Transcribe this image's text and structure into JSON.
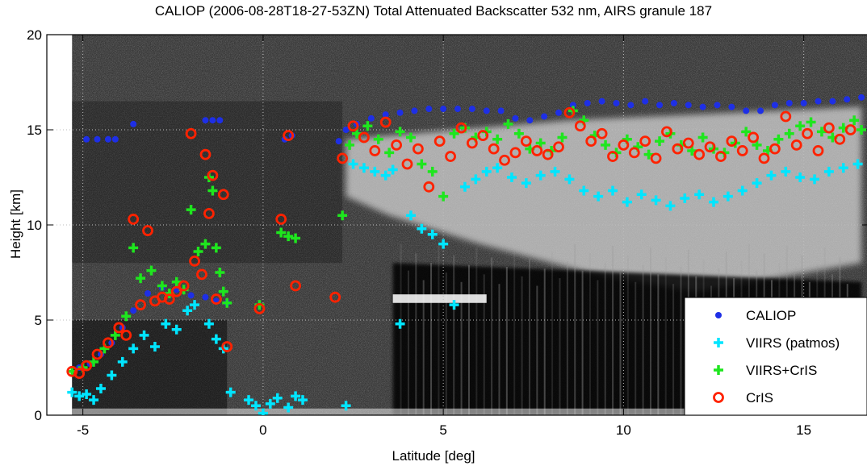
{
  "chart_data": {
    "type": "scatter",
    "title": "CALIOP (2006-08-28T18-27-53ZN) Total Attenuated Backscatter 532 nm, AIRS granule 187",
    "xlabel": "Latitude [deg]",
    "ylabel": "Height [km]",
    "xlim": [
      -6.0,
      16.8
    ],
    "ylim": [
      0,
      20
    ],
    "xticks": [
      -5,
      0,
      5,
      10,
      15
    ],
    "yticks": [
      0,
      5,
      10,
      15,
      20
    ],
    "xtick_labels": [
      "-5",
      "0",
      "5",
      "10",
      "15"
    ],
    "ytick_labels": [
      "0",
      "5",
      "10",
      "15",
      "20"
    ],
    "grid": true,
    "legend_position": "bottom-right",
    "background": "lidar total attenuated backscatter curtain (grayscale)",
    "series": [
      {
        "name": "CALIOP",
        "marker": "dot",
        "color": "#1e2fe6",
        "x": [
          -5.1,
          -4.8,
          -4.5,
          -4.2,
          -3.9,
          -3.6,
          -3.2,
          -2.8,
          -2.4,
          -2.0,
          -1.6,
          -1.3,
          -1.0,
          -4.9,
          -4.6,
          -4.3,
          -4.1,
          -3.6,
          -1.6,
          -1.4,
          -1.2,
          0.6,
          0.8,
          2.1,
          2.3,
          2.6,
          3.0,
          3.4,
          3.8,
          4.2,
          4.6,
          5.0,
          5.4,
          5.8,
          6.2,
          6.6,
          7.0,
          7.4,
          7.8,
          8.2,
          8.6,
          9.0,
          9.4,
          9.8,
          10.2,
          10.6,
          11.0,
          11.4,
          11.8,
          12.2,
          12.6,
          13.0,
          13.4,
          13.8,
          14.2,
          14.6,
          15.0,
          15.4,
          15.8,
          16.2,
          16.6
        ],
        "y": [
          2.5,
          2.7,
          3.2,
          3.8,
          4.6,
          5.5,
          6.4,
          6.7,
          6.6,
          6.3,
          6.2,
          6.0,
          5.9,
          14.5,
          14.5,
          14.5,
          14.5,
          15.3,
          15.5,
          15.5,
          15.5,
          14.5,
          14.7,
          14.4,
          15.0,
          15.3,
          15.6,
          15.8,
          15.9,
          16.0,
          16.1,
          16.1,
          16.1,
          16.1,
          16.0,
          16.0,
          15.6,
          15.5,
          15.7,
          15.9,
          16.3,
          16.4,
          16.5,
          16.4,
          16.3,
          16.5,
          16.3,
          16.4,
          16.3,
          16.2,
          16.3,
          16.2,
          16.0,
          16.0,
          16.3,
          16.4,
          16.4,
          16.5,
          16.5,
          16.6,
          16.7
        ]
      },
      {
        "name": "VIIRS (patmos)",
        "marker": "plus",
        "color": "#00e5ff",
        "x": [
          -5.3,
          -5.1,
          -4.9,
          -4.7,
          -4.5,
          -4.2,
          -3.9,
          -3.6,
          -3.3,
          -3.0,
          -2.7,
          -2.4,
          -2.1,
          -1.9,
          -1.5,
          -1.3,
          -1.1,
          -0.9,
          -0.4,
          -0.2,
          0.0,
          0.2,
          0.4,
          0.7,
          0.9,
          1.1,
          2.3,
          2.5,
          2.8,
          3.1,
          3.4,
          3.6,
          3.8,
          4.1,
          4.4,
          4.7,
          5.0,
          5.3,
          5.6,
          5.9,
          6.2,
          6.5,
          6.9,
          7.3,
          7.7,
          8.1,
          8.5,
          8.9,
          9.3,
          9.7,
          10.1,
          10.5,
          10.9,
          11.3,
          11.7,
          12.1,
          12.5,
          12.9,
          13.3,
          13.7,
          14.1,
          14.5,
          14.9,
          15.3,
          15.7,
          16.1,
          16.5
        ],
        "y": [
          1.2,
          1.0,
          1.1,
          0.8,
          1.4,
          2.1,
          2.8,
          3.5,
          4.2,
          3.6,
          4.8,
          4.5,
          5.5,
          5.8,
          4.8,
          4.0,
          3.5,
          1.2,
          0.8,
          0.5,
          0.1,
          0.6,
          0.9,
          0.4,
          1.0,
          0.8,
          0.5,
          13.2,
          13.0,
          12.8,
          12.6,
          12.9,
          4.8,
          10.5,
          9.8,
          9.5,
          9.0,
          5.8,
          12.0,
          12.4,
          12.8,
          13.0,
          12.5,
          12.2,
          12.6,
          12.8,
          12.4,
          11.8,
          11.5,
          11.8,
          11.2,
          11.6,
          11.3,
          11.0,
          11.4,
          11.6,
          11.2,
          11.5,
          11.8,
          12.2,
          12.6,
          12.8,
          12.5,
          12.4,
          12.8,
          13.0,
          13.2
        ]
      },
      {
        "name": "VIIRS+CrIS",
        "marker": "plus",
        "color": "#1ee61e",
        "x": [
          -5.3,
          -5.0,
          -4.7,
          -4.4,
          -4.1,
          -3.8,
          -3.6,
          -3.4,
          -3.1,
          -2.8,
          -2.6,
          -2.4,
          -2.2,
          -2.0,
          -1.8,
          -1.6,
          -1.5,
          -1.4,
          -1.3,
          -1.2,
          -1.1,
          -1.0,
          -0.1,
          0.5,
          0.7,
          0.9,
          2.2,
          2.4,
          2.6,
          2.9,
          3.2,
          3.5,
          3.8,
          4.1,
          4.4,
          4.7,
          5.0,
          5.3,
          5.6,
          5.9,
          6.2,
          6.5,
          6.8,
          7.1,
          7.4,
          7.7,
          8.0,
          8.3,
          8.6,
          8.9,
          9.2,
          9.5,
          9.8,
          10.1,
          10.4,
          10.7,
          11.0,
          11.3,
          11.6,
          11.9,
          12.2,
          12.5,
          12.8,
          13.1,
          13.4,
          13.7,
          14.0,
          14.3,
          14.6,
          14.9,
          15.2,
          15.5,
          15.8,
          16.1,
          16.4,
          16.6
        ],
        "y": [
          2.3,
          2.5,
          2.8,
          3.5,
          4.2,
          5.2,
          8.8,
          7.2,
          7.6,
          6.8,
          6.4,
          7.0,
          6.6,
          10.8,
          8.6,
          9.0,
          12.5,
          11.8,
          8.8,
          7.5,
          6.5,
          5.9,
          5.8,
          9.6,
          9.4,
          9.3,
          10.5,
          14.2,
          14.8,
          15.2,
          14.5,
          13.8,
          14.9,
          14.6,
          13.2,
          12.8,
          11.5,
          14.8,
          15.1,
          14.6,
          14.9,
          14.5,
          15.3,
          14.8,
          14.0,
          14.3,
          13.9,
          14.6,
          16.0,
          15.5,
          14.7,
          14.2,
          13.8,
          14.5,
          14.1,
          13.7,
          14.4,
          14.8,
          14.2,
          13.9,
          14.6,
          14.0,
          13.8,
          14.3,
          14.9,
          14.2,
          13.9,
          14.5,
          14.8,
          15.2,
          15.4,
          14.9,
          14.6,
          15.1,
          15.5,
          15.0
        ]
      },
      {
        "name": "CrIS",
        "marker": "circle",
        "color": "#ff2200",
        "x": [
          -5.3,
          -5.1,
          -4.9,
          -4.6,
          -4.3,
          -4.0,
          -3.8,
          -3.6,
          -3.4,
          -3.2,
          -3.0,
          -2.8,
          -2.6,
          -2.4,
          -2.2,
          -2.0,
          -1.9,
          -1.7,
          -1.6,
          -1.5,
          -1.4,
          -1.3,
          -1.1,
          -1.0,
          -0.1,
          0.5,
          0.7,
          0.9,
          2.0,
          2.2,
          2.5,
          2.8,
          3.1,
          3.4,
          3.7,
          4.0,
          4.3,
          4.6,
          4.9,
          5.2,
          5.5,
          5.8,
          6.1,
          6.4,
          6.7,
          7.0,
          7.3,
          7.6,
          7.9,
          8.2,
          8.5,
          8.8,
          9.1,
          9.4,
          9.7,
          10.0,
          10.3,
          10.6,
          10.9,
          11.2,
          11.5,
          11.8,
          12.1,
          12.4,
          12.7,
          13.0,
          13.3,
          13.6,
          13.9,
          14.2,
          14.5,
          14.8,
          15.1,
          15.4,
          15.7,
          16.0,
          16.3
        ],
        "y": [
          2.3,
          2.2,
          2.6,
          3.2,
          3.8,
          4.6,
          4.2,
          10.3,
          5.8,
          9.7,
          6.0,
          6.2,
          6.1,
          6.5,
          6.8,
          14.8,
          8.1,
          7.4,
          13.7,
          10.6,
          12.6,
          6.1,
          11.6,
          3.6,
          5.6,
          10.3,
          14.7,
          6.8,
          6.2,
          13.5,
          15.2,
          14.6,
          13.9,
          15.4,
          14.2,
          13.2,
          14.0,
          12.0,
          14.4,
          13.6,
          15.1,
          14.3,
          14.7,
          14.0,
          13.4,
          13.8,
          14.4,
          13.9,
          13.7,
          14.1,
          15.9,
          15.2,
          14.4,
          14.8,
          13.6,
          14.2,
          13.8,
          14.4,
          13.5,
          14.9,
          14.0,
          14.3,
          13.7,
          14.1,
          13.6,
          14.4,
          13.9,
          14.6,
          13.5,
          14.0,
          15.7,
          14.2,
          14.8,
          13.9,
          15.1,
          14.5,
          15.0
        ]
      }
    ]
  }
}
